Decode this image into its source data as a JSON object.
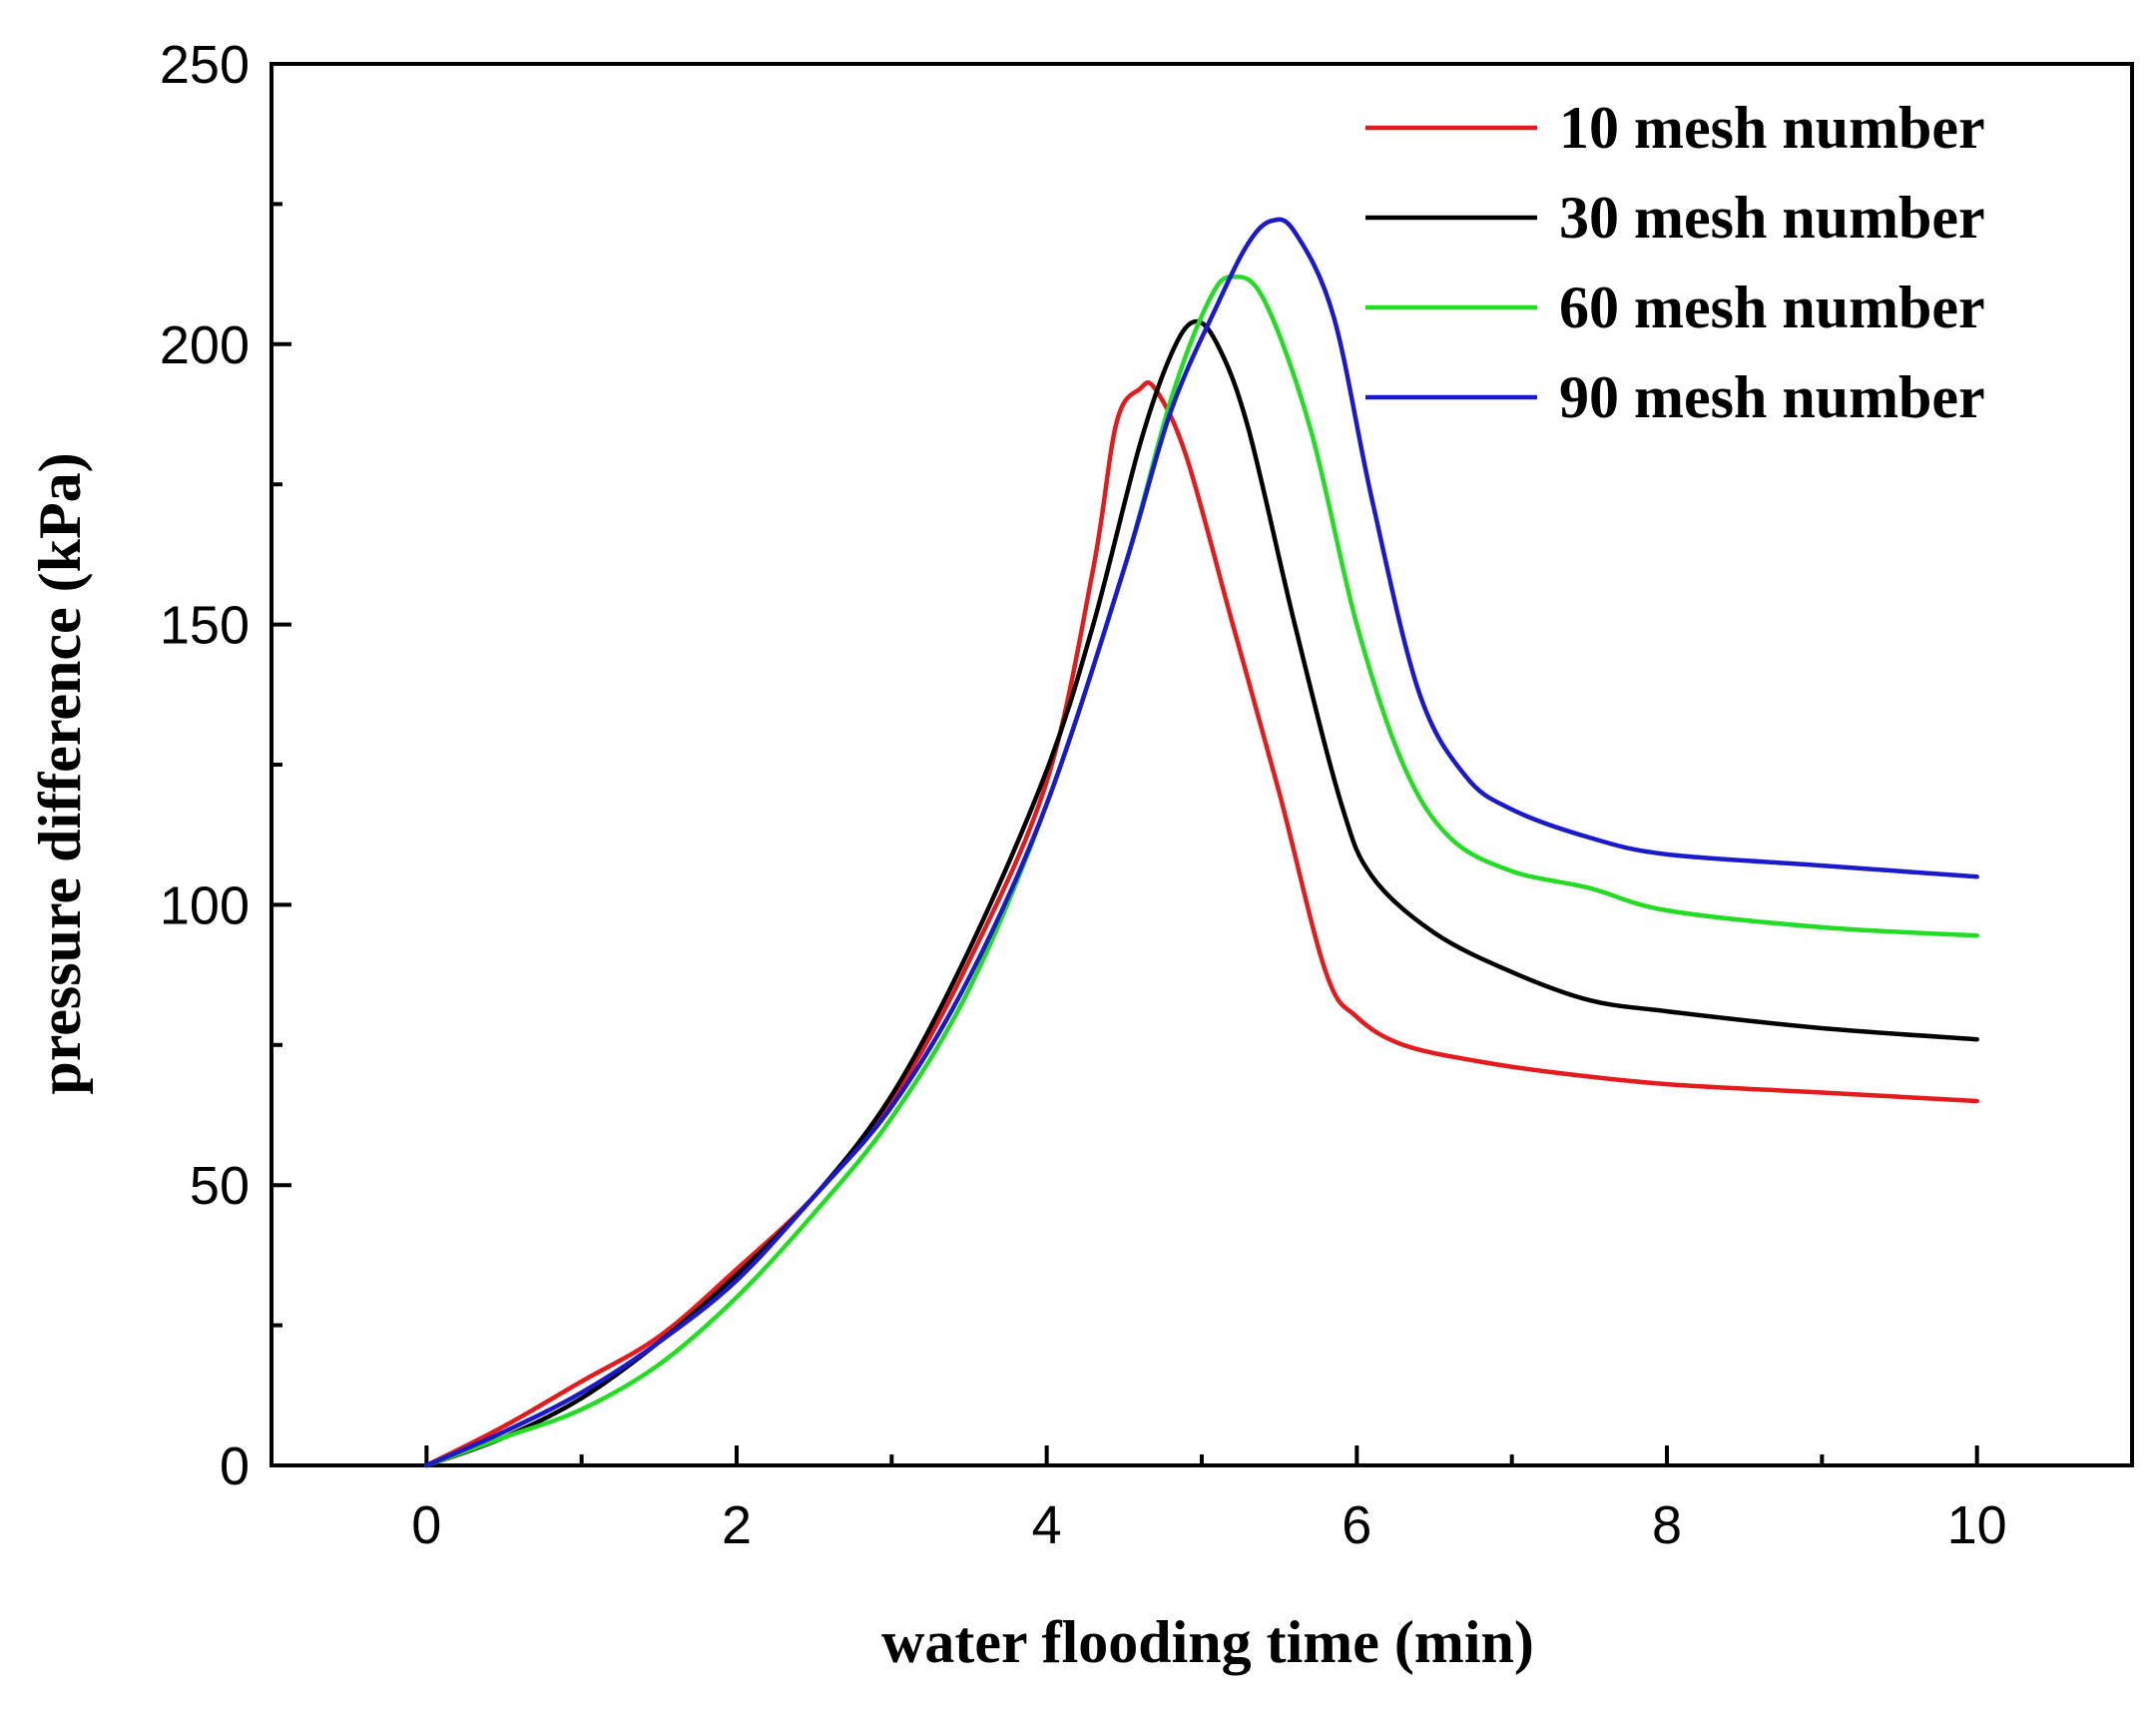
{
  "chart_data": {
    "type": "line",
    "title": "",
    "xlabel": "water flooding time (min)",
    "ylabel": "pressure difference (kPa)",
    "xlim": [
      -1,
      11
    ],
    "ylim": [
      0,
      250
    ],
    "x_ticks": [
      0,
      2,
      4,
      6,
      8,
      10
    ],
    "x_tick_labels": [
      "0",
      "2",
      "4",
      "6",
      "8",
      "10"
    ],
    "x_minor_ticks": [
      1,
      3,
      5,
      7,
      9
    ],
    "y_ticks": [
      0,
      50,
      100,
      150,
      200,
      250
    ],
    "y_tick_labels": [
      "0",
      "50",
      "100",
      "150",
      "200",
      "250"
    ],
    "y_minor_ticks": [
      25,
      75,
      125,
      175,
      225
    ],
    "grid": false,
    "legend_position": "top-right",
    "series": [
      {
        "name": "10 mesh number",
        "color": "#e41a1c",
        "points": [
          [
            0,
            0
          ],
          [
            0.5,
            7
          ],
          [
            1,
            15
          ],
          [
            1.5,
            23
          ],
          [
            2,
            35
          ],
          [
            2.5,
            48
          ],
          [
            3,
            65
          ],
          [
            3.5,
            90
          ],
          [
            4,
            122
          ],
          [
            4.3,
            160
          ],
          [
            4.45,
            186
          ],
          [
            4.6,
            192
          ],
          [
            4.7,
            192
          ],
          [
            4.9,
            180
          ],
          [
            5.2,
            150
          ],
          [
            5.5,
            120
          ],
          [
            5.8,
            88
          ],
          [
            6,
            80
          ],
          [
            6.3,
            75
          ],
          [
            6.8,
            72
          ],
          [
            7.3,
            70
          ],
          [
            8,
            68
          ],
          [
            9,
            66.5
          ],
          [
            10,
            65
          ]
        ]
      },
      {
        "name": "30 mesh number",
        "color": "#000000",
        "points": [
          [
            0,
            0
          ],
          [
            0.5,
            5
          ],
          [
            1,
            12
          ],
          [
            1.5,
            22
          ],
          [
            2,
            34
          ],
          [
            2.5,
            48
          ],
          [
            3,
            66
          ],
          [
            3.5,
            92
          ],
          [
            4,
            124
          ],
          [
            4.3,
            150
          ],
          [
            4.6,
            182
          ],
          [
            4.8,
            198
          ],
          [
            4.95,
            204
          ],
          [
            5.1,
            200
          ],
          [
            5.3,
            185
          ],
          [
            5.6,
            150
          ],
          [
            5.9,
            118
          ],
          [
            6.1,
            105
          ],
          [
            6.5,
            95
          ],
          [
            7,
            88
          ],
          [
            7.5,
            83
          ],
          [
            8,
            81
          ],
          [
            9,
            78
          ],
          [
            10,
            76
          ]
        ]
      },
      {
        "name": "60 mesh number",
        "color": "#22dd22",
        "points": [
          [
            0,
            0
          ],
          [
            0.5,
            5
          ],
          [
            1,
            10
          ],
          [
            1.5,
            18
          ],
          [
            2,
            30
          ],
          [
            2.5,
            45
          ],
          [
            3,
            62
          ],
          [
            3.5,
            85
          ],
          [
            4,
            118
          ],
          [
            4.5,
            160
          ],
          [
            4.8,
            190
          ],
          [
            5.05,
            208
          ],
          [
            5.2,
            212
          ],
          [
            5.4,
            208
          ],
          [
            5.7,
            185
          ],
          [
            6,
            150
          ],
          [
            6.3,
            125
          ],
          [
            6.6,
            112
          ],
          [
            7,
            106
          ],
          [
            7.5,
            103
          ],
          [
            8,
            99
          ],
          [
            9,
            96
          ],
          [
            10,
            94.5
          ]
        ]
      },
      {
        "name": "90 mesh number",
        "color": "#1a1acc",
        "points": [
          [
            0,
            0
          ],
          [
            0.5,
            6
          ],
          [
            1,
            13
          ],
          [
            1.5,
            22
          ],
          [
            2,
            33
          ],
          [
            2.5,
            48
          ],
          [
            3,
            64
          ],
          [
            3.5,
            87
          ],
          [
            4,
            118
          ],
          [
            4.5,
            160
          ],
          [
            4.8,
            188
          ],
          [
            5.1,
            207
          ],
          [
            5.3,
            218
          ],
          [
            5.45,
            222
          ],
          [
            5.6,
            220
          ],
          [
            5.85,
            205
          ],
          [
            6.1,
            172
          ],
          [
            6.4,
            138
          ],
          [
            6.7,
            123
          ],
          [
            7,
            117
          ],
          [
            7.5,
            112
          ],
          [
            8,
            109
          ],
          [
            9,
            107
          ],
          [
            10,
            105
          ]
        ]
      }
    ]
  }
}
